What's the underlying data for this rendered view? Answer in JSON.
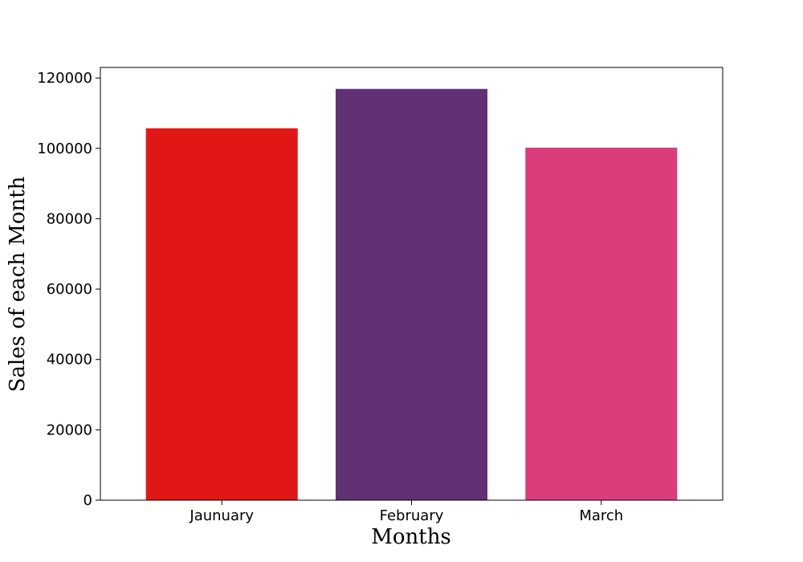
{
  "chart_data": {
    "type": "bar",
    "title": "",
    "xlabel": "Months",
    "ylabel": "Sales of each Month",
    "categories": [
      "Jaunuary",
      "February",
      "March"
    ],
    "values": [
      105700,
      116900,
      100200
    ],
    "colors": [
      "#e01715",
      "#623175",
      "#dc3c7b"
    ],
    "ylim": [
      0,
      123000
    ],
    "yticks": [
      0,
      20000,
      40000,
      60000,
      80000,
      100000,
      120000
    ],
    "ytick_labels": [
      "0",
      "20000",
      "40000",
      "60000",
      "80000",
      "100000",
      "120000"
    ],
    "grid": false,
    "legend": "none"
  }
}
